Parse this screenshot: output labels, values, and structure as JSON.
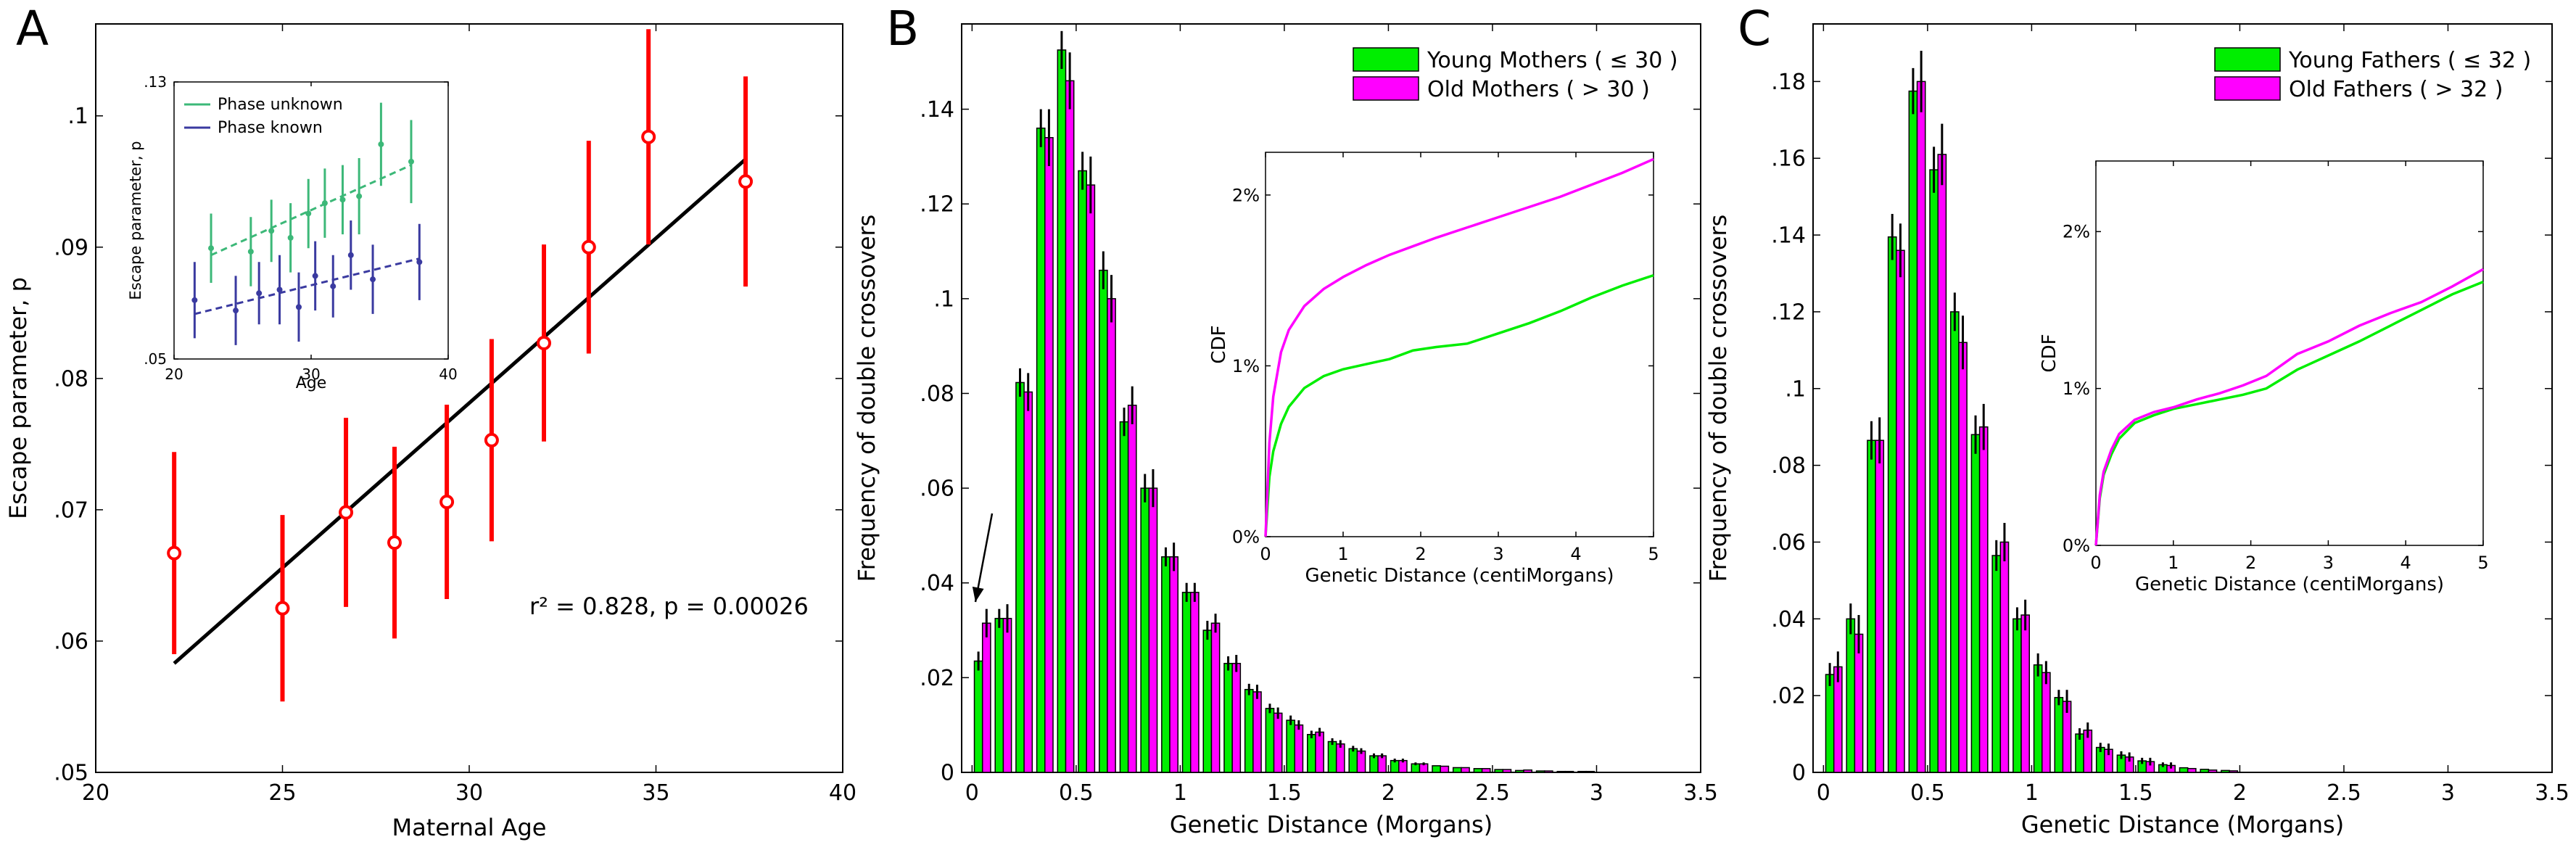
{
  "colors": {
    "red": "#ff0000",
    "green": "#00ee00",
    "magenta": "#ff00ff",
    "inset_green": "#3cb878",
    "inset_blue": "#3a3aa0",
    "black": "#000000"
  },
  "chart_data": [
    {
      "panel": "A",
      "type": "scatter",
      "xlabel": "Maternal Age",
      "ylabel": "Escape parameter, p",
      "xlim": [
        20,
        40
      ],
      "ylim": [
        0.05,
        0.107
      ],
      "xticks": [
        20,
        25,
        30,
        35,
        40
      ],
      "yticks": [
        0.05,
        0.06,
        0.07,
        0.08,
        0.09,
        0.1
      ],
      "series": [
        {
          "x": [
            22.1,
            25.0,
            26.7,
            28.0,
            29.4,
            30.6,
            32.0,
            33.2,
            34.8,
            37.4
          ],
          "y": [
            0.0667,
            0.0625,
            0.0698,
            0.0675,
            0.0706,
            0.0753,
            0.0827,
            0.09,
            0.0984,
            0.095
          ],
          "err": [
            0.0077,
            0.0071,
            0.0072,
            0.0073,
            0.0074,
            0.0077,
            0.0075,
            0.0081,
            0.0082,
            0.008
          ]
        }
      ],
      "fit": {
        "x": [
          22.1,
          37.4
        ],
        "y": [
          0.0583,
          0.0967
        ]
      },
      "annotation": "r² = 0.828, p = 0.00026",
      "inset": {
        "xlabel": "Age",
        "ylabel": "Escape parameter, p",
        "xlim": [
          20,
          40
        ],
        "ylim": [
          0.05,
          0.13
        ],
        "xticks": [
          20,
          30,
          40
        ],
        "yticks": [
          0.05,
          0.13
        ],
        "series": [
          {
            "name": "Phase unknown",
            "x": [
              22.7,
              25.6,
              27.1,
              28.5,
              29.8,
              31.0,
              32.3,
              33.5,
              35.1,
              37.3
            ],
            "y": [
              0.082,
              0.081,
              0.087,
              0.085,
              0.092,
              0.095,
              0.096,
              0.097,
              0.112,
              0.107
            ],
            "err": [
              0.01,
              0.01,
              0.009,
              0.01,
              0.01,
              0.01,
              0.01,
              0.011,
              0.012,
              0.012
            ]
          },
          {
            "name": "Phase known",
            "x": [
              21.5,
              24.5,
              26.2,
              27.7,
              29.1,
              30.3,
              31.6,
              32.9,
              34.5,
              37.9
            ],
            "y": [
              0.067,
              0.064,
              0.069,
              0.07,
              0.065,
              0.074,
              0.071,
              0.08,
              0.073,
              0.078
            ],
            "err": [
              0.011,
              0.01,
              0.009,
              0.01,
              0.01,
              0.01,
              0.009,
              0.01,
              0.01,
              0.011
            ]
          }
        ],
        "fits": [
          {
            "x": [
              22.7,
              37.3
            ],
            "y": [
              0.08,
              0.106
            ]
          },
          {
            "x": [
              21.5,
              37.9
            ],
            "y": [
              0.063,
              0.079
            ]
          }
        ]
      }
    },
    {
      "panel": "B",
      "type": "bar",
      "xlabel": "Genetic Distance (Morgans)",
      "ylabel": "Frequency of double crossovers",
      "xlim": [
        -0.05,
        3.5
      ],
      "ylim": [
        0,
        0.158
      ],
      "xticks": [
        0,
        0.5,
        1,
        1.5,
        2,
        2.5,
        3,
        3.5
      ],
      "yticks": [
        0,
        0.02,
        0.04,
        0.06,
        0.08,
        0.1,
        0.12,
        0.14
      ],
      "bin_width": 0.1,
      "x": [
        0.05,
        0.15,
        0.25,
        0.35,
        0.45,
        0.55,
        0.65,
        0.75,
        0.85,
        0.95,
        1.05,
        1.15,
        1.25,
        1.35,
        1.45,
        1.55,
        1.65,
        1.75,
        1.85,
        1.95,
        2.05,
        2.15,
        2.25,
        2.35,
        2.45,
        2.55,
        2.65,
        2.75,
        2.85,
        2.95
      ],
      "series": [
        {
          "name": "Young Mothers ( ≤ 30 )",
          "values": [
            0.0235,
            0.0325,
            0.0823,
            0.136,
            0.1525,
            0.127,
            0.106,
            0.074,
            0.06,
            0.0455,
            0.038,
            0.03,
            0.023,
            0.0175,
            0.0135,
            0.011,
            0.008,
            0.0065,
            0.005,
            0.0035,
            0.0025,
            0.0018,
            0.0014,
            0.001,
            0.0008,
            0.0006,
            0.0004,
            0.0003,
            0.0002,
            0.0002
          ],
          "err": [
            0.002,
            0.002,
            0.003,
            0.004,
            0.004,
            0.004,
            0.004,
            0.003,
            0.003,
            0.002,
            0.002,
            0.002,
            0.0015,
            0.0012,
            0.001,
            0.001,
            0.0008,
            0.0007,
            0.0006,
            0.0005,
            0.0004,
            0.0003,
            0.0003,
            0.0002,
            0.0002,
            0.0002,
            0.0001,
            0.0001,
            0.0001,
            0.0001
          ]
        },
        {
          "name": "Old Mothers ( > 30 )",
          "values": [
            0.0315,
            0.0325,
            0.0803,
            0.134,
            0.146,
            0.124,
            0.1,
            0.0775,
            0.06,
            0.0455,
            0.038,
            0.0315,
            0.023,
            0.017,
            0.0125,
            0.01,
            0.0085,
            0.006,
            0.0045,
            0.0035,
            0.0025,
            0.0018,
            0.0013,
            0.001,
            0.0008,
            0.0006,
            0.0005,
            0.0003,
            0.0002,
            0.0002
          ],
          "err": [
            0.003,
            0.003,
            0.004,
            0.006,
            0.006,
            0.006,
            0.005,
            0.004,
            0.004,
            0.003,
            0.002,
            0.002,
            0.0018,
            0.0015,
            0.0012,
            0.001,
            0.0009,
            0.0008,
            0.0006,
            0.0005,
            0.0004,
            0.0003,
            0.0003,
            0.0002,
            0.0002,
            0.0002,
            0.0001,
            0.0001,
            0.0001,
            0.0001
          ]
        }
      ],
      "inset": {
        "type": "line",
        "xlabel": "Genetic Distance (centiMorgans)",
        "ylabel": "CDF",
        "xlim": [
          0,
          5
        ],
        "ylim": [
          0,
          0.0225
        ],
        "xticks": [
          0,
          1,
          2,
          3,
          4,
          5
        ],
        "yticks": [
          0,
          0.01,
          0.02
        ],
        "ytick_labels": [
          "0%",
          "1%",
          "2%"
        ],
        "series": [
          {
            "name": "Young Mothers ( ≤ 30 )",
            "x": [
              0,
              0.05,
              0.1,
              0.2,
              0.3,
              0.5,
              0.75,
              1.0,
              1.3,
              1.6,
              1.9,
              2.2,
              2.6,
              3.0,
              3.4,
              3.8,
              4.2,
              4.6,
              5.0
            ],
            "y": [
              0,
              0.0035,
              0.005,
              0.0066,
              0.0076,
              0.0087,
              0.0094,
              0.0098,
              0.0101,
              0.0104,
              0.0109,
              0.0111,
              0.0113,
              0.0119,
              0.0125,
              0.0132,
              0.014,
              0.0147,
              0.0153
            ]
          },
          {
            "name": "Old Mothers ( > 30 )",
            "x": [
              0,
              0.05,
              0.1,
              0.2,
              0.3,
              0.5,
              0.75,
              1.0,
              1.3,
              1.6,
              1.9,
              2.2,
              2.6,
              3.0,
              3.4,
              3.8,
              4.2,
              4.6,
              5.0
            ],
            "y": [
              0,
              0.0055,
              0.0082,
              0.0108,
              0.0121,
              0.0135,
              0.0145,
              0.0152,
              0.0159,
              0.0165,
              0.017,
              0.0175,
              0.0181,
              0.0187,
              0.0193,
              0.0199,
              0.0206,
              0.0213,
              0.0221
            ]
          }
        ]
      }
    },
    {
      "panel": "C",
      "type": "bar",
      "xlabel": "Genetic Distance (Morgans)",
      "ylabel": "Frequency of double crossovers",
      "xlim": [
        -0.05,
        3.5
      ],
      "ylim": [
        0,
        0.195
      ],
      "xticks": [
        0,
        0.5,
        1,
        1.5,
        2,
        2.5,
        3,
        3.5
      ],
      "yticks": [
        0,
        0.02,
        0.04,
        0.06,
        0.08,
        0.1,
        0.12,
        0.14,
        0.16,
        0.18
      ],
      "bin_width": 0.1,
      "x": [
        0.05,
        0.15,
        0.25,
        0.35,
        0.45,
        0.55,
        0.65,
        0.75,
        0.85,
        0.95,
        1.05,
        1.15,
        1.25,
        1.35,
        1.45,
        1.55,
        1.65,
        1.75,
        1.85,
        1.95
      ],
      "series": [
        {
          "name": "Young Fathers ( ≤ 32 )",
          "values": [
            0.0255,
            0.04,
            0.0865,
            0.1395,
            0.1775,
            0.157,
            0.12,
            0.088,
            0.0565,
            0.04,
            0.028,
            0.0195,
            0.01,
            0.0065,
            0.0045,
            0.003,
            0.002,
            0.0012,
            0.0008,
            0.0005
          ],
          "err": [
            0.003,
            0.004,
            0.005,
            0.006,
            0.006,
            0.006,
            0.005,
            0.005,
            0.004,
            0.003,
            0.003,
            0.002,
            0.0015,
            0.0012,
            0.001,
            0.0008,
            0.0006,
            0.0005,
            0.0004,
            0.0003
          ]
        },
        {
          "name": "Old Fathers ( > 32 )",
          "values": [
            0.0275,
            0.036,
            0.0865,
            0.136,
            0.18,
            0.161,
            0.112,
            0.09,
            0.06,
            0.041,
            0.026,
            0.0185,
            0.011,
            0.006,
            0.004,
            0.0028,
            0.0018,
            0.001,
            0.0006,
            0.0004
          ],
          "err": [
            0.004,
            0.005,
            0.006,
            0.007,
            0.008,
            0.008,
            0.007,
            0.006,
            0.005,
            0.004,
            0.003,
            0.003,
            0.002,
            0.0015,
            0.0012,
            0.001,
            0.0008,
            0.0006,
            0.0004,
            0.0003
          ]
        }
      ],
      "inset": {
        "type": "line",
        "xlabel": "Genetic Distance (centiMorgans)",
        "ylabel": "CDF",
        "xlim": [
          0,
          5
        ],
        "ylim": [
          0,
          0.0245
        ],
        "xticks": [
          0,
          1,
          2,
          3,
          4,
          5
        ],
        "yticks": [
          0,
          0.01,
          0.02
        ],
        "ytick_labels": [
          "0%",
          "1%",
          "2%"
        ],
        "series": [
          {
            "name": "Young Fathers ( ≤ 32 )",
            "x": [
              0,
              0.05,
              0.1,
              0.2,
              0.3,
              0.5,
              0.75,
              1.0,
              1.3,
              1.6,
              1.9,
              2.2,
              2.6,
              3.0,
              3.4,
              3.8,
              4.2,
              4.6,
              5.0
            ],
            "y": [
              0,
              0.003,
              0.0045,
              0.0058,
              0.0068,
              0.0078,
              0.0083,
              0.0087,
              0.009,
              0.0093,
              0.0096,
              0.01,
              0.0112,
              0.0121,
              0.013,
              0.014,
              0.015,
              0.016,
              0.0168
            ]
          },
          {
            "name": "Old Fathers ( > 32 )",
            "x": [
              0,
              0.05,
              0.1,
              0.2,
              0.3,
              0.5,
              0.75,
              1.0,
              1.3,
              1.6,
              1.9,
              2.2,
              2.6,
              3.0,
              3.4,
              3.8,
              4.2,
              4.6,
              5.0
            ],
            "y": [
              0,
              0.0032,
              0.0047,
              0.0061,
              0.0071,
              0.008,
              0.0085,
              0.0088,
              0.0093,
              0.0097,
              0.0102,
              0.0108,
              0.0122,
              0.013,
              0.014,
              0.0148,
              0.0155,
              0.0165,
              0.0176
            ]
          }
        ]
      }
    }
  ],
  "panel_labels": [
    "A",
    "B",
    "C"
  ]
}
